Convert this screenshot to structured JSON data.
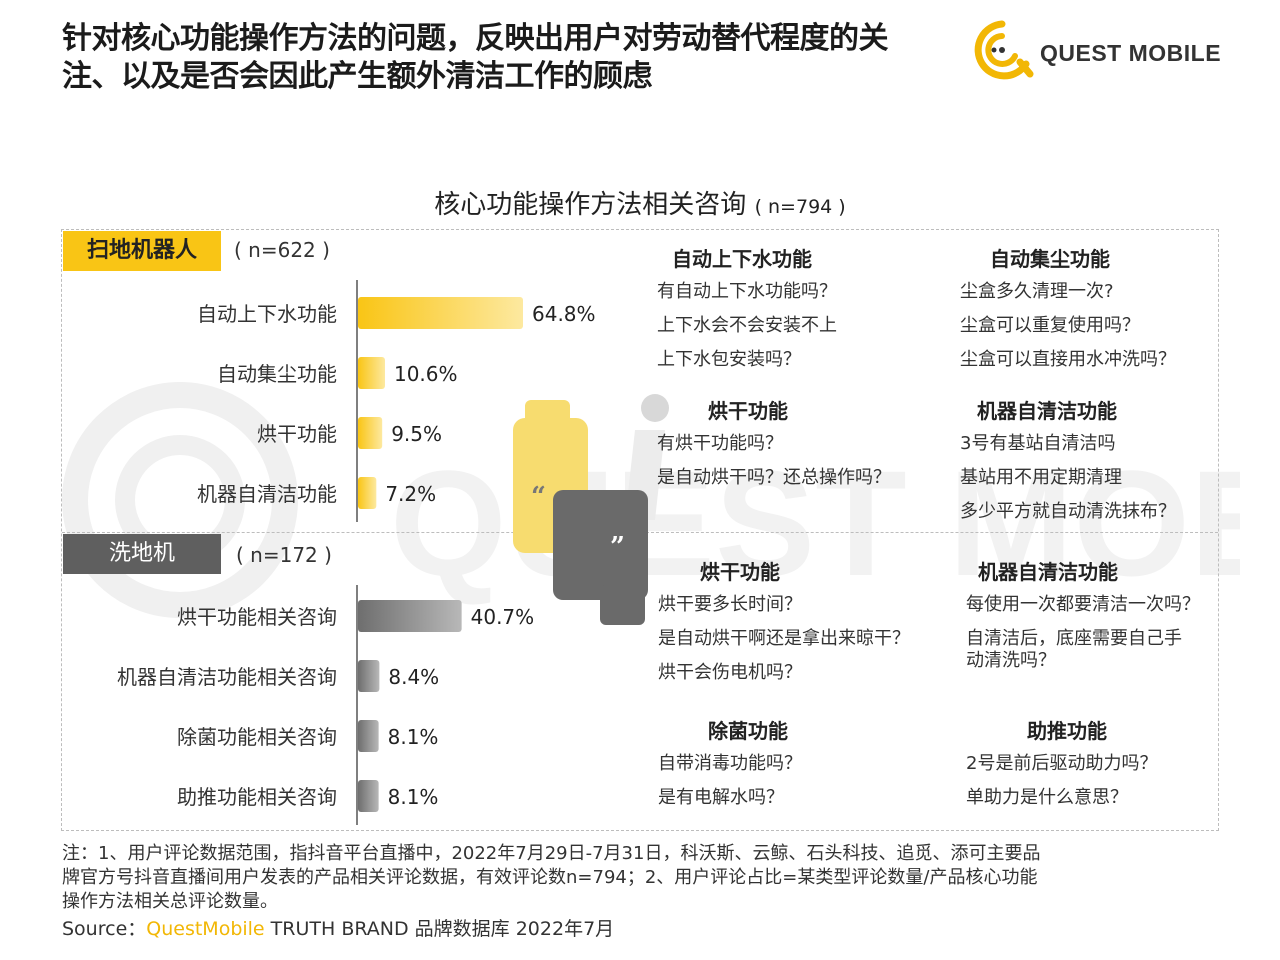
{
  "header": {
    "title_line1": "针对核心功能操作方法的问题，反映出用户对劳动替代程度的关",
    "title_line2": "注、以及是否会因此产生额外清洁工作的顾虑",
    "logo_text": "QUEST MOBILE"
  },
  "chart_title": {
    "main": "核心功能操作方法相关咨询",
    "n": "( n=794 )"
  },
  "chart_data": [
    {
      "type": "bar",
      "group": "扫地机器人",
      "group_n": "( n=622 )",
      "color": "#f9c515",
      "categories": [
        "自动上下水功能",
        "自动集尘功能",
        "烘干功能",
        "机器自清洁功能"
      ],
      "values": [
        64.8,
        10.6,
        9.5,
        7.2
      ],
      "value_labels": [
        "64.8%",
        "10.6%",
        "9.5%",
        "7.2%"
      ],
      "ylim": [
        0,
        70
      ]
    },
    {
      "type": "bar",
      "group": "洗地机",
      "group_n": "( n=172 )",
      "color": "#7a7a7a",
      "categories": [
        "烘干功能相关咨询",
        "机器自清洁功能相关咨询",
        "除菌功能相关咨询",
        "助推功能相关咨询"
      ],
      "values": [
        40.7,
        8.4,
        8.1,
        8.1
      ],
      "value_labels": [
        "40.7%",
        "8.4%",
        "8.1%",
        "8.1%"
      ],
      "ylim": [
        0,
        70
      ]
    }
  ],
  "qa": {
    "robot": [
      {
        "title": "自动上下水功能",
        "items": [
          "有自动上下水功能吗？",
          "上下水会不会安装不上",
          "上下水包安装吗？"
        ]
      },
      {
        "title": "自动集尘功能",
        "items": [
          "尘盒多久清理一次?",
          "尘盒可以重复使用吗？",
          "尘盒可以直接用水冲洗吗？"
        ]
      },
      {
        "title": "烘干功能",
        "items": [
          "有烘干功能吗？",
          "是自动烘干吗？还总操作吗？"
        ]
      },
      {
        "title": "机器自清洁功能",
        "items": [
          "3号有基站自清洁吗",
          "基站用不用定期清理",
          "多少平方就自动清洗抹布？"
        ]
      }
    ],
    "wash": [
      {
        "title": "烘干功能",
        "items": [
          "烘干要多长时间？",
          "是自动烘干啊还是拿出来晾干？",
          "烘干会伤电机吗？"
        ]
      },
      {
        "title": "机器自清洁功能",
        "items": [
          "每使用一次都要清洁一次吗？",
          "自清洁后，底座需要自己手",
          "动清洗吗？"
        ]
      },
      {
        "title": "除菌功能",
        "items": [
          "自带消毒功能吗？",
          "是有电解水吗？"
        ]
      },
      {
        "title": "助推功能",
        "items": [
          "2号是前后驱动助力吗？",
          "单助力是什么意思？"
        ]
      }
    ]
  },
  "footer": {
    "note_line1": "注：1、用户评论数据范围，指抖音平台直播中，2022年7月29日-7月31日，科沃斯、云鲸、石头科技、追觅、添可主要品",
    "note_line2": "牌官方号抖音直播间用户发表的产品相关评论数据，有效评论数n=794；2、用户评论占比=某类型评论数量/产品核心功能",
    "note_line3": "操作方法相关总评论数量。",
    "source_label": "Source：",
    "source_brand": "QuestMobile",
    "source_rest": " TRUTH BRAND 品牌数据库 2022年7月"
  },
  "watermark_text": "QUEST MOBILE"
}
